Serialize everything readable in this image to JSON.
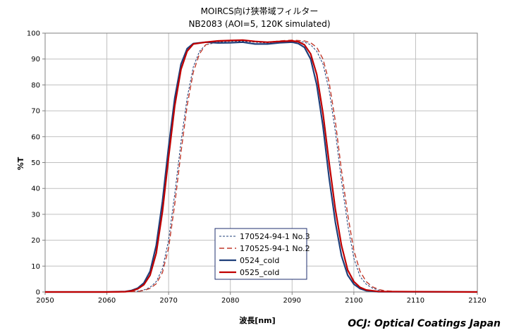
{
  "chart_data": {
    "type": "line",
    "title": "MOIRCS向け狭帯域フィルター",
    "subtitle": "NB2083 (AOI=5, 120K simulated)",
    "xlabel": "波長[nm]",
    "ylabel": "%T",
    "xlim": [
      2050,
      2120
    ],
    "ylim": [
      0,
      100
    ],
    "xticks": [
      2050,
      2060,
      2070,
      2080,
      2090,
      2100,
      2110,
      2120
    ],
    "yticks": [
      0,
      10,
      20,
      30,
      40,
      50,
      60,
      70,
      80,
      90,
      100
    ],
    "grid": true,
    "legend_position": "bottom-center",
    "footer": "OCJ:  Optical  Coatings  Japan",
    "series": [
      {
        "name": "170524-94-1 No.3",
        "color": "#1f3f7a",
        "style": "dotted",
        "points": [
          [
            2050,
            0
          ],
          [
            2062,
            0
          ],
          [
            2065,
            0.3
          ],
          [
            2066,
            0.8
          ],
          [
            2067,
            1.8
          ],
          [
            2068,
            4
          ],
          [
            2069,
            9
          ],
          [
            2070,
            20
          ],
          [
            2071,
            38
          ],
          [
            2072,
            58
          ],
          [
            2073,
            75
          ],
          [
            2074,
            87
          ],
          [
            2075,
            93
          ],
          [
            2076,
            95.5
          ],
          [
            2078,
            96.5
          ],
          [
            2080,
            96.8
          ],
          [
            2082,
            96.9
          ],
          [
            2084,
            96.5
          ],
          [
            2086,
            96.2
          ],
          [
            2088,
            96.8
          ],
          [
            2090,
            97
          ],
          [
            2092,
            96.5
          ],
          [
            2093,
            95.5
          ],
          [
            2094,
            93
          ],
          [
            2095,
            88
          ],
          [
            2096,
            78
          ],
          [
            2097,
            62
          ],
          [
            2098,
            43
          ],
          [
            2099,
            26
          ],
          [
            2100,
            13
          ],
          [
            2101,
            6
          ],
          [
            2102,
            3
          ],
          [
            2103,
            1.5
          ],
          [
            2104,
            0.7
          ],
          [
            2105,
            0.3
          ],
          [
            2107,
            0
          ],
          [
            2120,
            0
          ]
        ]
      },
      {
        "name": "170525-94-1 No.2",
        "color": "#c0392b",
        "style": "dashed",
        "points": [
          [
            2050,
            0
          ],
          [
            2062,
            0
          ],
          [
            2065,
            0.2
          ],
          [
            2066,
            0.6
          ],
          [
            2067,
            1.4
          ],
          [
            2068,
            3.2
          ],
          [
            2069,
            7.5
          ],
          [
            2070,
            17
          ],
          [
            2071,
            34
          ],
          [
            2072,
            54
          ],
          [
            2073,
            72
          ],
          [
            2074,
            85
          ],
          [
            2075,
            92
          ],
          [
            2076,
            95.5
          ],
          [
            2078,
            96.8
          ],
          [
            2080,
            97
          ],
          [
            2082,
            97.2
          ],
          [
            2084,
            96.8
          ],
          [
            2086,
            96.5
          ],
          [
            2088,
            97
          ],
          [
            2090,
            97.3
          ],
          [
            2092,
            97
          ],
          [
            2093,
            96.3
          ],
          [
            2094,
            94.5
          ],
          [
            2095,
            90
          ],
          [
            2096,
            81
          ],
          [
            2097,
            66
          ],
          [
            2098,
            47
          ],
          [
            2099,
            30
          ],
          [
            2100,
            16
          ],
          [
            2101,
            8
          ],
          [
            2102,
            4
          ],
          [
            2103,
            2
          ],
          [
            2104,
            1
          ],
          [
            2105,
            0.5
          ],
          [
            2107,
            0.1
          ],
          [
            2120,
            0
          ]
        ]
      },
      {
        "name": "0524_cold",
        "color": "#1f3f7a",
        "style": "solid",
        "points": [
          [
            2050,
            0
          ],
          [
            2060,
            0
          ],
          [
            2063,
            0.2
          ],
          [
            2064,
            0.6
          ],
          [
            2065,
            1.5
          ],
          [
            2066,
            3.5
          ],
          [
            2067,
            8
          ],
          [
            2068,
            18
          ],
          [
            2069,
            35
          ],
          [
            2070,
            56
          ],
          [
            2071,
            75
          ],
          [
            2072,
            88
          ],
          [
            2073,
            94
          ],
          [
            2074,
            96
          ],
          [
            2076,
            96.5
          ],
          [
            2078,
            96.2
          ],
          [
            2080,
            96.3
          ],
          [
            2082,
            96.5
          ],
          [
            2084,
            95.8
          ],
          [
            2086,
            95.8
          ],
          [
            2088,
            96.3
          ],
          [
            2090,
            96.5
          ],
          [
            2091,
            96
          ],
          [
            2092,
            94.5
          ],
          [
            2093,
            90
          ],
          [
            2094,
            80
          ],
          [
            2095,
            64
          ],
          [
            2096,
            44
          ],
          [
            2097,
            27
          ],
          [
            2098,
            14
          ],
          [
            2099,
            6.5
          ],
          [
            2100,
            3
          ],
          [
            2101,
            1.3
          ],
          [
            2102,
            0.5
          ],
          [
            2104,
            0.1
          ],
          [
            2120,
            0
          ]
        ]
      },
      {
        "name": "0525_cold",
        "color": "#c00000",
        "style": "solid",
        "points": [
          [
            2050,
            0
          ],
          [
            2060,
            0
          ],
          [
            2063,
            0.1
          ],
          [
            2064,
            0.4
          ],
          [
            2065,
            1.2
          ],
          [
            2066,
            2.8
          ],
          [
            2067,
            6.5
          ],
          [
            2068,
            15
          ],
          [
            2069,
            31
          ],
          [
            2070,
            52
          ],
          [
            2071,
            72
          ],
          [
            2072,
            86
          ],
          [
            2073,
            93
          ],
          [
            2074,
            95.8
          ],
          [
            2076,
            96.5
          ],
          [
            2078,
            97
          ],
          [
            2080,
            97.2
          ],
          [
            2082,
            97.3
          ],
          [
            2084,
            96.8
          ],
          [
            2086,
            96.5
          ],
          [
            2088,
            96.8
          ],
          [
            2090,
            97
          ],
          [
            2091,
            96.7
          ],
          [
            2092,
            95.5
          ],
          [
            2093,
            92
          ],
          [
            2094,
            84
          ],
          [
            2095,
            69
          ],
          [
            2096,
            50
          ],
          [
            2097,
            32
          ],
          [
            2098,
            18
          ],
          [
            2099,
            8.5
          ],
          [
            2100,
            4
          ],
          [
            2101,
            1.8
          ],
          [
            2102,
            0.8
          ],
          [
            2104,
            0.2
          ],
          [
            2120,
            0
          ]
        ]
      }
    ]
  }
}
